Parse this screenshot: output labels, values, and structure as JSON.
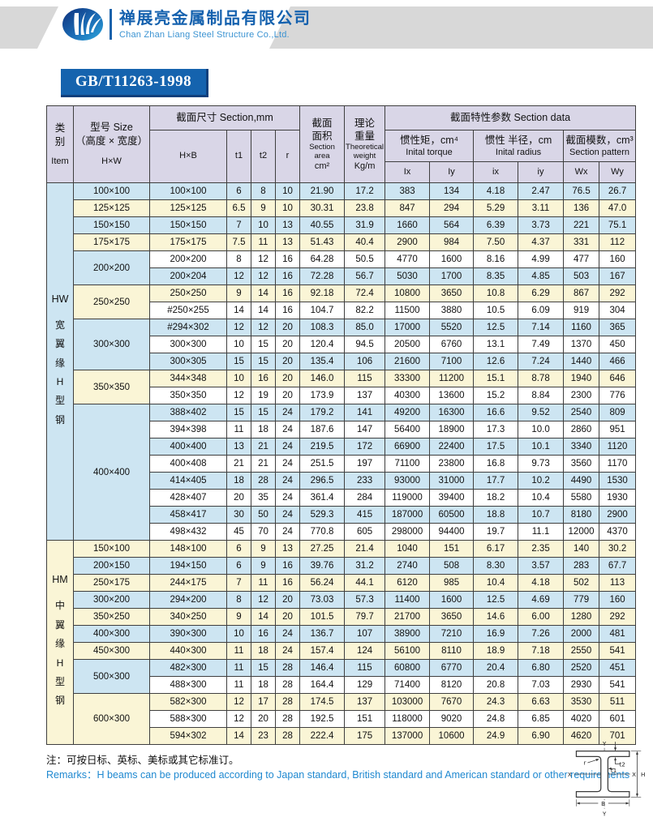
{
  "banner": {
    "company_cn": "禅展亮金属制品有限公司",
    "company_en": "Chan Zhan Liang Steel Structure Co.,Ltd.",
    "standard_badge": "GB/T11263-1998"
  },
  "colors": {
    "badge_blue": "#1563ae",
    "company_blue": "#1461ae",
    "remark_blue": "#1e88d0",
    "band_gray": "#d8d8d8",
    "header_lavender": "#d9d6e7",
    "row_blue": "#cde5f2",
    "row_cream": "#faf5d6",
    "row_white": "#ffffff"
  },
  "table": {
    "headers": {
      "item_cn": "类\n别",
      "item_en": "Item",
      "size_cn": "型号 Size\n（高度 × 宽度）",
      "size_unit": "H×W",
      "section_mm": "截面尺寸 Section,mm",
      "hxb": "H×B",
      "t1": "t1",
      "t2": "t2",
      "r": "r",
      "area_cn": "截面\n面积",
      "area_en": "Section\narea",
      "area_unit": "cm²",
      "weight_cn": "理论\n重量",
      "weight_en": "Theoretical\nweight",
      "weight_unit": "Kg/m",
      "section_data": "截面特性参数 Section data",
      "inertia_cn": "惯性矩，cm⁴",
      "inertia_en": "Inital torque",
      "radius_cn": "惯性 半径，cm",
      "radius_en": "Inital radius",
      "modulus_cn": "截面模数，cm³",
      "modulus_en": "Section pattern",
      "Ix": "Ix",
      "Iy": "Iy",
      "ix": "ix",
      "iy": "iy",
      "Wx": "Wx",
      "Wy": "Wy"
    },
    "groups": [
      {
        "item_label": "HW",
        "item_vertical": "宽翼缘H型钢",
        "item_color": "b",
        "sizes": [
          {
            "label": "100×100",
            "color": "b",
            "rows": [
              {
                "hxb": "100×100",
                "t1": "6",
                "t2": "8",
                "r": "10",
                "area": "21.90",
                "weight": "17.2",
                "Ix": "383",
                "Iy": "134",
                "ix": "4.18",
                "iy": "2.47",
                "Wx": "76.5",
                "Wy": "26.7",
                "c": "b"
              }
            ]
          },
          {
            "label": "125×125",
            "color": "y",
            "rows": [
              {
                "hxb": "125×125",
                "t1": "6.5",
                "t2": "9",
                "r": "10",
                "area": "30.31",
                "weight": "23.8",
                "Ix": "847",
                "Iy": "294",
                "ix": "5.29",
                "iy": "3.11",
                "Wx": "136",
                "Wy": "47.0",
                "c": "y"
              }
            ]
          },
          {
            "label": "150×150",
            "color": "b",
            "rows": [
              {
                "hxb": "150×150",
                "t1": "7",
                "t2": "10",
                "r": "13",
                "area": "40.55",
                "weight": "31.9",
                "Ix": "1660",
                "Iy": "564",
                "ix": "6.39",
                "iy": "3.73",
                "Wx": "221",
                "Wy": "75.1",
                "c": "b"
              }
            ]
          },
          {
            "label": "175×175",
            "color": "y",
            "rows": [
              {
                "hxb": "175×175",
                "t1": "7.5",
                "t2": "11",
                "r": "13",
                "area": "51.43",
                "weight": "40.4",
                "Ix": "2900",
                "Iy": "984",
                "ix": "7.50",
                "iy": "4.37",
                "Wx": "331",
                "Wy": "112",
                "c": "y"
              }
            ]
          },
          {
            "label": "200×200",
            "color": "b",
            "rows": [
              {
                "hxb": "200×200",
                "t1": "8",
                "t2": "12",
                "r": "16",
                "area": "64.28",
                "weight": "50.5",
                "Ix": "4770",
                "Iy": "1600",
                "ix": "8.16",
                "iy": "4.99",
                "Wx": "477",
                "Wy": "160",
                "c": "w"
              },
              {
                "hxb": "200×204",
                "t1": "12",
                "t2": "12",
                "r": "16",
                "area": "72.28",
                "weight": "56.7",
                "Ix": "5030",
                "Iy": "1700",
                "ix": "8.35",
                "iy": "4.85",
                "Wx": "503",
                "Wy": "167",
                "c": "b"
              }
            ]
          },
          {
            "label": "250×250",
            "color": "y",
            "rows": [
              {
                "hxb": "250×250",
                "t1": "9",
                "t2": "14",
                "r": "16",
                "area": "92.18",
                "weight": "72.4",
                "Ix": "10800",
                "Iy": "3650",
                "ix": "10.8",
                "iy": "6.29",
                "Wx": "867",
                "Wy": "292",
                "c": "y"
              },
              {
                "hxb": "#250×255",
                "t1": "14",
                "t2": "14",
                "r": "16",
                "area": "104.7",
                "weight": "82.2",
                "Ix": "11500",
                "Iy": "3880",
                "ix": "10.5",
                "iy": "6.09",
                "Wx": "919",
                "Wy": "304",
                "c": "w"
              }
            ]
          },
          {
            "label": "300×300",
            "color": "b",
            "rows": [
              {
                "hxb": "#294×302",
                "t1": "12",
                "t2": "12",
                "r": "20",
                "area": "108.3",
                "weight": "85.0",
                "Ix": "17000",
                "Iy": "5520",
                "ix": "12.5",
                "iy": "7.14",
                "Wx": "1160",
                "Wy": "365",
                "c": "b"
              },
              {
                "hxb": "300×300",
                "t1": "10",
                "t2": "15",
                "r": "20",
                "area": "120.4",
                "weight": "94.5",
                "Ix": "20500",
                "Iy": "6760",
                "ix": "13.1",
                "iy": "7.49",
                "Wx": "1370",
                "Wy": "450",
                "c": "w"
              },
              {
                "hxb": "300×305",
                "t1": "15",
                "t2": "15",
                "r": "20",
                "area": "135.4",
                "weight": "106",
                "Ix": "21600",
                "Iy": "7100",
                "ix": "12.6",
                "iy": "7.24",
                "Wx": "1440",
                "Wy": "466",
                "c": "b"
              }
            ]
          },
          {
            "label": "350×350",
            "color": "y",
            "rows": [
              {
                "hxb": "344×348",
                "t1": "10",
                "t2": "16",
                "r": "20",
                "area": "146.0",
                "weight": "115",
                "Ix": "33300",
                "Iy": "11200",
                "ix": "15.1",
                "iy": "8.78",
                "Wx": "1940",
                "Wy": "646",
                "c": "y"
              },
              {
                "hxb": "350×350",
                "t1": "12",
                "t2": "19",
                "r": "20",
                "area": "173.9",
                "weight": "137",
                "Ix": "40300",
                "Iy": "13600",
                "ix": "15.2",
                "iy": "8.84",
                "Wx": "2300",
                "Wy": "776",
                "c": "w"
              }
            ]
          },
          {
            "label": "400×400",
            "color": "b",
            "rows": [
              {
                "hxb": "388×402",
                "t1": "15",
                "t2": "15",
                "r": "24",
                "area": "179.2",
                "weight": "141",
                "Ix": "49200",
                "Iy": "16300",
                "ix": "16.6",
                "iy": "9.52",
                "Wx": "2540",
                "Wy": "809",
                "c": "b"
              },
              {
                "hxb": "394×398",
                "t1": "11",
                "t2": "18",
                "r": "24",
                "area": "187.6",
                "weight": "147",
                "Ix": "56400",
                "Iy": "18900",
                "ix": "17.3",
                "iy": "10.0",
                "Wx": "2860",
                "Wy": "951",
                "c": "w"
              },
              {
                "hxb": "400×400",
                "t1": "13",
                "t2": "21",
                "r": "24",
                "area": "219.5",
                "weight": "172",
                "Ix": "66900",
                "Iy": "22400",
                "ix": "17.5",
                "iy": "10.1",
                "Wx": "3340",
                "Wy": "1120",
                "c": "b"
              },
              {
                "hxb": "400×408",
                "t1": "21",
                "t2": "21",
                "r": "24",
                "area": "251.5",
                "weight": "197",
                "Ix": "71100",
                "Iy": "23800",
                "ix": "16.8",
                "iy": "9.73",
                "Wx": "3560",
                "Wy": "1170",
                "c": "w"
              },
              {
                "hxb": "414×405",
                "t1": "18",
                "t2": "28",
                "r": "24",
                "area": "296.5",
                "weight": "233",
                "Ix": "93000",
                "Iy": "31000",
                "ix": "17.7",
                "iy": "10.2",
                "Wx": "4490",
                "Wy": "1530",
                "c": "b"
              },
              {
                "hxb": "428×407",
                "t1": "20",
                "t2": "35",
                "r": "24",
                "area": "361.4",
                "weight": "284",
                "Ix": "119000",
                "Iy": "39400",
                "ix": "18.2",
                "iy": "10.4",
                "Wx": "5580",
                "Wy": "1930",
                "c": "w"
              },
              {
                "hxb": "458×417",
                "t1": "30",
                "t2": "50",
                "r": "24",
                "area": "529.3",
                "weight": "415",
                "Ix": "187000",
                "Iy": "60500",
                "ix": "18.8",
                "iy": "10.7",
                "Wx": "8180",
                "Wy": "2900",
                "c": "b"
              },
              {
                "hxb": "498×432",
                "t1": "45",
                "t2": "70",
                "r": "24",
                "area": "770.8",
                "weight": "605",
                "Ix": "298000",
                "Iy": "94400",
                "ix": "19.7",
                "iy": "11.1",
                "Wx": "12000",
                "Wy": "4370",
                "c": "w"
              }
            ]
          }
        ]
      },
      {
        "item_label": "HM",
        "item_vertical": "中翼缘H型钢",
        "item_color": "y",
        "sizes": [
          {
            "label": "150×100",
            "color": "y",
            "rows": [
              {
                "hxb": "148×100",
                "t1": "6",
                "t2": "9",
                "r": "13",
                "area": "27.25",
                "weight": "21.4",
                "Ix": "1040",
                "Iy": "151",
                "ix": "6.17",
                "iy": "2.35",
                "Wx": "140",
                "Wy": "30.2",
                "c": "y"
              }
            ]
          },
          {
            "label": "200×150",
            "color": "b",
            "rows": [
              {
                "hxb": "194×150",
                "t1": "6",
                "t2": "9",
                "r": "16",
                "area": "39.76",
                "weight": "31.2",
                "Ix": "2740",
                "Iy": "508",
                "ix": "8.30",
                "iy": "3.57",
                "Wx": "283",
                "Wy": "67.7",
                "c": "b"
              }
            ]
          },
          {
            "label": "250×175",
            "color": "y",
            "rows": [
              {
                "hxb": "244×175",
                "t1": "7",
                "t2": "11",
                "r": "16",
                "area": "56.24",
                "weight": "44.1",
                "Ix": "6120",
                "Iy": "985",
                "ix": "10.4",
                "iy": "4.18",
                "Wx": "502",
                "Wy": "113",
                "c": "y"
              }
            ]
          },
          {
            "label": "300×200",
            "color": "b",
            "rows": [
              {
                "hxb": "294×200",
                "t1": "8",
                "t2": "12",
                "r": "20",
                "area": "73.03",
                "weight": "57.3",
                "Ix": "11400",
                "Iy": "1600",
                "ix": "12.5",
                "iy": "4.69",
                "Wx": "779",
                "Wy": "160",
                "c": "b"
              }
            ]
          },
          {
            "label": "350×250",
            "color": "y",
            "rows": [
              {
                "hxb": "340×250",
                "t1": "9",
                "t2": "14",
                "r": "20",
                "area": "101.5",
                "weight": "79.7",
                "Ix": "21700",
                "Iy": "3650",
                "ix": "14.6",
                "iy": "6.00",
                "Wx": "1280",
                "Wy": "292",
                "c": "y"
              }
            ]
          },
          {
            "label": "400×300",
            "color": "b",
            "rows": [
              {
                "hxb": "390×300",
                "t1": "10",
                "t2": "16",
                "r": "24",
                "area": "136.7",
                "weight": "107",
                "Ix": "38900",
                "Iy": "7210",
                "ix": "16.9",
                "iy": "7.26",
                "Wx": "2000",
                "Wy": "481",
                "c": "b"
              }
            ]
          },
          {
            "label": "450×300",
            "color": "y",
            "rows": [
              {
                "hxb": "440×300",
                "t1": "11",
                "t2": "18",
                "r": "24",
                "area": "157.4",
                "weight": "124",
                "Ix": "56100",
                "Iy": "8110",
                "ix": "18.9",
                "iy": "7.18",
                "Wx": "2550",
                "Wy": "541",
                "c": "y"
              }
            ]
          },
          {
            "label": "500×300",
            "color": "b",
            "rows": [
              {
                "hxb": "482×300",
                "t1": "11",
                "t2": "15",
                "r": "28",
                "area": "146.4",
                "weight": "115",
                "Ix": "60800",
                "Iy": "6770",
                "ix": "20.4",
                "iy": "6.80",
                "Wx": "2520",
                "Wy": "451",
                "c": "b"
              },
              {
                "hxb": "488×300",
                "t1": "11",
                "t2": "18",
                "r": "28",
                "area": "164.4",
                "weight": "129",
                "Ix": "71400",
                "Iy": "8120",
                "ix": "20.8",
                "iy": "7.03",
                "Wx": "2930",
                "Wy": "541",
                "c": "w"
              }
            ]
          },
          {
            "label": "600×300",
            "color": "y",
            "rows": [
              {
                "hxb": "582×300",
                "t1": "12",
                "t2": "17",
                "r": "28",
                "area": "174.5",
                "weight": "137",
                "Ix": "103000",
                "Iy": "7670",
                "ix": "24.3",
                "iy": "6.63",
                "Wx": "3530",
                "Wy": "511",
                "c": "y"
              },
              {
                "hxb": "588×300",
                "t1": "12",
                "t2": "20",
                "r": "28",
                "area": "192.5",
                "weight": "151",
                "Ix": "118000",
                "Iy": "9020",
                "ix": "24.8",
                "iy": "6.85",
                "Wx": "4020",
                "Wy": "601",
                "c": "w"
              },
              {
                "hxb": "594×302",
                "t1": "14",
                "t2": "23",
                "r": "28",
                "area": "222.4",
                "weight": "175",
                "Ix": "137000",
                "Iy": "10600",
                "ix": "24.9",
                "iy": "6.90",
                "Wx": "4620",
                "Wy": "701",
                "c": "y"
              }
            ]
          }
        ]
      }
    ]
  },
  "footer": {
    "note_cn": "注：可按日标、英标、美标或其它标准订。",
    "note_en": "Remarks：H beams can be produced according to Japan standard, British standard and American standard or other requirements"
  },
  "diagram": {
    "y_top": "Y",
    "y_bottom": "Y",
    "x_left": "X",
    "x_right": "X",
    "h": "H",
    "b": "B",
    "t1": "t1",
    "t2": "t2",
    "r": "r"
  }
}
